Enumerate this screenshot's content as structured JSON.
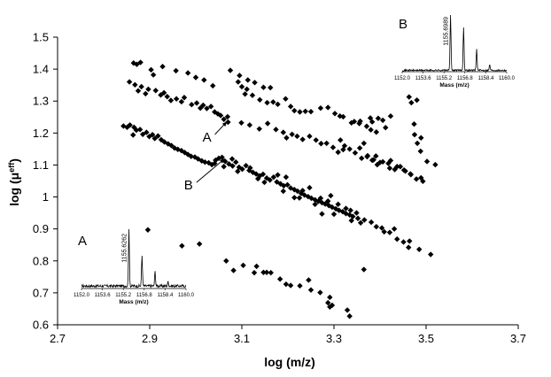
{
  "chart_data": {
    "type": "scatter",
    "title": "",
    "xlabel": "log (m/z)",
    "ylabel": "log (μ",
    "ylabel_sup": "eff",
    "ylabel_close": ")",
    "xlim": [
      2.7,
      3.7
    ],
    "ylim": [
      0.6,
      1.5
    ],
    "xticks": [
      "2.7",
      "2.9",
      "3.1",
      "3.3",
      "3.5",
      "3.7"
    ],
    "yticks": [
      "0.6",
      "0.7",
      "0.8",
      "0.9",
      "1",
      "1.1",
      "1.2",
      "1.3",
      "1.4",
      "1.5"
    ],
    "grid": false,
    "marker": "diamond",
    "color": "#000000",
    "series": [
      {
        "points": [
          [
            2.865,
            1.419
          ],
          [
            2.872,
            1.415
          ],
          [
            2.88,
            1.421
          ],
          [
            2.903,
            1.398
          ],
          [
            2.928,
            1.408
          ],
          [
            2.908,
            1.382
          ],
          [
            2.957,
            1.395
          ],
          [
            2.983,
            1.388
          ],
          [
            3.0,
            1.374
          ],
          [
            3.018,
            1.366
          ],
          [
            3.037,
            1.348
          ],
          [
            2.856,
            1.36
          ],
          [
            2.868,
            1.351
          ],
          [
            2.875,
            1.332
          ],
          [
            2.882,
            1.345
          ],
          [
            2.891,
            1.323
          ],
          [
            2.897,
            1.337
          ],
          [
            2.913,
            1.333
          ],
          [
            2.924,
            1.319
          ],
          [
            2.931,
            1.326
          ],
          [
            2.938,
            1.314
          ],
          [
            2.946,
            1.302
          ],
          [
            2.958,
            1.307
          ],
          [
            2.969,
            1.298
          ],
          [
            2.975,
            1.311
          ],
          [
            2.991,
            1.289
          ],
          [
            3.002,
            1.294
          ],
          [
            3.01,
            1.278
          ],
          [
            3.016,
            1.287
          ],
          [
            3.024,
            1.277
          ],
          [
            3.033,
            1.283
          ],
          [
            3.041,
            1.266
          ],
          [
            3.048,
            1.26
          ],
          [
            3.054,
            1.255
          ],
          [
            3.061,
            1.243
          ],
          [
            3.07,
            1.234
          ],
          [
            3.069,
            1.251
          ],
          [
            3.075,
            1.396
          ],
          [
            3.095,
            1.38
          ],
          [
            3.113,
            1.366
          ],
          [
            3.128,
            1.358
          ],
          [
            3.147,
            1.343
          ],
          [
            3.162,
            1.342
          ],
          [
            3.092,
            1.36
          ],
          [
            3.1,
            1.345
          ],
          [
            3.111,
            1.337
          ],
          [
            3.107,
            1.322
          ],
          [
            3.123,
            1.318
          ],
          [
            3.139,
            1.304
          ],
          [
            3.155,
            1.295
          ],
          [
            3.168,
            1.297
          ],
          [
            3.178,
            1.29
          ],
          [
            3.195,
            1.307
          ],
          [
            3.206,
            1.283
          ],
          [
            3.214,
            1.27
          ],
          [
            3.226,
            1.266
          ],
          [
            3.238,
            1.268
          ],
          [
            3.25,
            1.267
          ],
          [
            3.271,
            1.278
          ],
          [
            3.287,
            1.28
          ],
          [
            3.302,
            1.261
          ],
          [
            3.32,
            1.251
          ],
          [
            3.338,
            1.232
          ],
          [
            3.355,
            1.23
          ],
          [
            3.371,
            1.221
          ],
          [
            3.383,
            1.235
          ],
          [
            3.38,
            1.21
          ],
          [
            3.392,
            1.203
          ],
          [
            3.412,
            1.217
          ],
          [
            3.099,
            1.232
          ],
          [
            3.117,
            1.225
          ],
          [
            3.138,
            1.213
          ],
          [
            3.156,
            1.23
          ],
          [
            3.174,
            1.211
          ],
          [
            3.19,
            1.202
          ],
          [
            3.197,
            1.185
          ],
          [
            3.209,
            1.196
          ],
          [
            3.22,
            1.19
          ],
          [
            3.232,
            1.18
          ],
          [
            3.247,
            1.19
          ],
          [
            3.261,
            1.178
          ],
          [
            3.272,
            1.167
          ],
          [
            3.284,
            1.168
          ],
          [
            3.298,
            1.155
          ],
          [
            3.309,
            1.14
          ],
          [
            3.32,
            1.148
          ],
          [
            3.334,
            1.15
          ],
          [
            3.346,
            1.138
          ],
          [
            3.36,
            1.121
          ],
          [
            3.372,
            1.126
          ],
          [
            3.383,
            1.115
          ],
          [
            3.394,
            1.101
          ],
          [
            3.406,
            1.11
          ],
          [
            3.418,
            1.105
          ],
          [
            3.421,
            1.09
          ],
          [
            3.432,
            1.086
          ],
          [
            3.444,
            1.095
          ],
          [
            3.455,
            1.081
          ],
          [
            3.467,
            1.07
          ],
          [
            3.489,
            1.06
          ],
          [
            3.493,
            1.049
          ],
          [
            3.313,
            1.253
          ],
          [
            3.344,
            1.236
          ],
          [
            3.357,
            1.237
          ],
          [
            3.379,
            1.247
          ],
          [
            3.396,
            1.246
          ],
          [
            3.314,
            1.178
          ],
          [
            3.323,
            1.16
          ],
          [
            3.365,
            1.168
          ],
          [
            3.356,
            1.153
          ],
          [
            3.373,
            1.129
          ],
          [
            3.391,
            1.128
          ],
          [
            3.386,
            1.116
          ],
          [
            3.4,
            1.108
          ],
          [
            3.423,
            1.114
          ],
          [
            3.437,
            1.095
          ],
          [
            3.452,
            1.084
          ],
          [
            3.466,
            1.072
          ],
          [
            3.479,
            1.056
          ],
          [
            3.463,
            1.313
          ],
          [
            3.48,
            1.303
          ],
          [
            3.468,
            1.295
          ],
          [
            3.474,
            1.228
          ],
          [
            3.489,
            1.185
          ],
          [
            3.481,
            1.168
          ],
          [
            3.488,
            1.143
          ],
          [
            3.502,
            1.111
          ],
          [
            3.52,
            1.101
          ],
          [
            3.423,
            1.253
          ],
          [
            3.406,
            1.24
          ],
          [
            3.475,
            1.195
          ],
          [
            2.843,
            1.222
          ],
          [
            2.851,
            1.218
          ],
          [
            2.857,
            1.225
          ],
          [
            2.866,
            1.218
          ],
          [
            2.871,
            1.209
          ],
          [
            2.864,
            1.194
          ],
          [
            2.879,
            1.211
          ],
          [
            2.885,
            1.196
          ],
          [
            2.893,
            1.202
          ],
          [
            2.899,
            1.189
          ],
          [
            2.906,
            1.195
          ],
          [
            2.911,
            1.183
          ],
          [
            2.918,
            1.191
          ],
          [
            2.925,
            1.179
          ],
          [
            2.932,
            1.172
          ],
          [
            2.94,
            1.166
          ],
          [
            2.947,
            1.161
          ],
          [
            2.954,
            1.153
          ],
          [
            2.961,
            1.149
          ],
          [
            2.969,
            1.145
          ],
          [
            2.976,
            1.139
          ],
          [
            2.983,
            1.133
          ],
          [
            2.99,
            1.127
          ],
          [
            2.998,
            1.125
          ],
          [
            3.005,
            1.119
          ],
          [
            3.013,
            1.113
          ],
          [
            3.02,
            1.109
          ],
          [
            3.028,
            1.107
          ],
          [
            3.035,
            1.101
          ],
          [
            3.043,
            1.115
          ],
          [
            3.05,
            1.121
          ],
          [
            3.057,
            1.124
          ],
          [
            3.064,
            1.111
          ],
          [
            3.072,
            1.103
          ],
          [
            3.079,
            1.119
          ],
          [
            3.087,
            1.109
          ],
          [
            3.094,
            1.093
          ],
          [
            3.101,
            1.087
          ],
          [
            3.109,
            1.098
          ],
          [
            3.116,
            1.083
          ],
          [
            3.124,
            1.077
          ],
          [
            3.131,
            1.072
          ],
          [
            3.139,
            1.066
          ],
          [
            3.146,
            1.071
          ],
          [
            3.154,
            1.059
          ],
          [
            3.161,
            1.053
          ],
          [
            3.169,
            1.062
          ],
          [
            3.176,
            1.047
          ],
          [
            3.184,
            1.041
          ],
          [
            3.191,
            1.035
          ],
          [
            3.199,
            1.038
          ],
          [
            3.206,
            1.028
          ],
          [
            3.214,
            1.023
          ],
          [
            3.221,
            1.018
          ],
          [
            3.229,
            1.011
          ],
          [
            3.236,
            1.006
          ],
          [
            3.244,
            1.001
          ],
          [
            3.251,
            0.996
          ],
          [
            3.259,
            0.991
          ],
          [
            3.266,
            0.986
          ],
          [
            3.274,
            0.982
          ],
          [
            3.281,
            0.978
          ],
          [
            3.289,
            0.973
          ],
          [
            3.296,
            0.968
          ],
          [
            3.304,
            0.963
          ],
          [
            3.311,
            0.958
          ],
          [
            3.319,
            0.954
          ],
          [
            3.326,
            0.948
          ],
          [
            3.334,
            0.944
          ],
          [
            3.341,
            0.939
          ],
          [
            3.041,
            1.105
          ],
          [
            3.061,
            1.095
          ],
          [
            3.08,
            1.097
          ],
          [
            3.091,
            1.08
          ],
          [
            3.118,
            1.091
          ],
          [
            3.135,
            1.057
          ],
          [
            3.149,
            1.046
          ],
          [
            3.178,
            1.069
          ],
          [
            3.196,
            1.062
          ],
          [
            3.19,
            1.018
          ],
          [
            3.214,
            0.998
          ],
          [
            3.232,
            1.02
          ],
          [
            3.259,
            0.977
          ],
          [
            3.247,
            1.029
          ],
          [
            3.271,
            0.996
          ],
          [
            3.287,
            0.987
          ],
          [
            3.293,
            1.004
          ],
          [
            3.309,
            0.977
          ],
          [
            3.326,
            0.964
          ],
          [
            3.336,
            0.958
          ],
          [
            3.349,
            0.95
          ],
          [
            3.3,
            0.946
          ],
          [
            3.338,
            0.926
          ],
          [
            3.352,
            0.933
          ],
          [
            3.358,
            0.919
          ],
          [
            3.366,
            0.928
          ],
          [
            3.381,
            0.921
          ],
          [
            3.392,
            0.907
          ],
          [
            3.404,
            0.903
          ],
          [
            3.409,
            0.891
          ],
          [
            3.421,
            0.889
          ],
          [
            3.431,
            0.9
          ],
          [
            3.437,
            0.868
          ],
          [
            3.451,
            0.859
          ],
          [
            3.462,
            0.842
          ],
          [
            3.485,
            0.836
          ],
          [
            3.51,
            0.82
          ],
          [
            3.464,
            0.862
          ],
          [
            3.274,
            0.947
          ],
          [
            3.225,
            0.997
          ],
          [
            2.896,
            0.897
          ],
          [
            2.97,
            0.847
          ],
          [
            3.008,
            0.853
          ],
          [
            3.066,
            0.8
          ],
          [
            3.082,
            0.77
          ],
          [
            3.103,
            0.786
          ],
          [
            3.132,
            0.783
          ],
          [
            3.127,
            0.763
          ],
          [
            3.147,
            0.764
          ],
          [
            3.154,
            0.764
          ],
          [
            3.163,
            0.763
          ],
          [
            3.183,
            0.743
          ],
          [
            3.196,
            0.727
          ],
          [
            3.206,
            0.723
          ],
          [
            3.226,
            0.722
          ],
          [
            3.245,
            0.74
          ],
          [
            3.25,
            0.709
          ],
          [
            3.27,
            0.701
          ],
          [
            3.291,
            0.686
          ],
          [
            3.287,
            0.669
          ],
          [
            3.296,
            0.661
          ],
          [
            3.291,
            0.656
          ],
          [
            3.329,
            0.646
          ],
          [
            3.334,
            0.627
          ],
          [
            3.365,
            0.773
          ]
        ]
      }
    ],
    "annotations": [
      {
        "text": "A",
        "x": 3.03,
        "y": 1.19,
        "arrow_to": [
          3.068,
          1.236
        ]
      },
      {
        "text": "B",
        "x": 2.99,
        "y": 1.04,
        "arrow_to": [
          3.063,
          1.12
        ]
      }
    ],
    "insets": [
      {
        "label": "A",
        "peak_label": "1155.6262",
        "xlabel": "Mass (m/z)",
        "xticks": [
          "1152.0",
          "1153.6",
          "1155.2",
          "1156.8",
          "1158.4",
          "1160.0"
        ],
        "xlim": [
          1152.0,
          1160.0
        ],
        "peaks": [
          [
            1155.63,
            1.0
          ],
          [
            1156.63,
            0.55
          ],
          [
            1157.63,
            0.26
          ],
          [
            1158.63,
            0.08
          ]
        ],
        "noise": 0.07
      },
      {
        "label": "B",
        "peak_label": "1155.6989",
        "xlabel": "Mass (m/z)",
        "xticks": [
          "1152.0",
          "1153.6",
          "1155.2",
          "1156.8",
          "1158.4",
          "1160.0"
        ],
        "xlim": [
          1152.0,
          1160.0
        ],
        "peaks": [
          [
            1155.7,
            1.0
          ],
          [
            1156.7,
            0.78
          ],
          [
            1157.7,
            0.38
          ],
          [
            1158.7,
            0.1
          ]
        ],
        "noise": 0.04
      }
    ]
  }
}
